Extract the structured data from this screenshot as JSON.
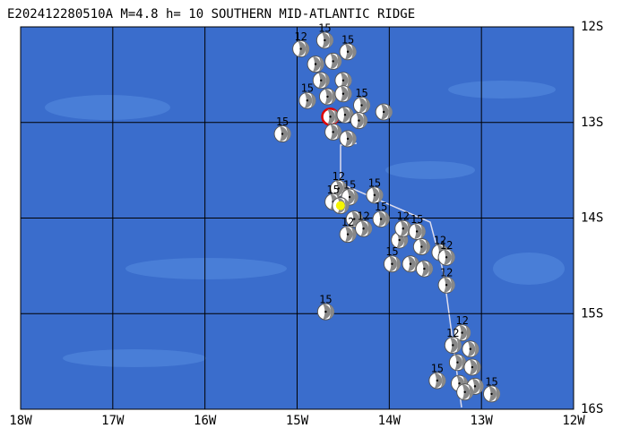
{
  "title": "E202412280510A M=4.8 h= 10 SOUTHERN MID-ATLANTIC RIDGE",
  "lon_ticks": [
    {
      "value": -18,
      "label": "18W"
    },
    {
      "value": -17,
      "label": "17W"
    },
    {
      "value": -16,
      "label": "16W"
    },
    {
      "value": -15,
      "label": "15W"
    },
    {
      "value": -14,
      "label": "14W"
    },
    {
      "value": -13,
      "label": "13W"
    },
    {
      "value": -12,
      "label": "12W"
    }
  ],
  "lat_ticks": [
    {
      "value": -12,
      "label": "12S"
    },
    {
      "value": -13,
      "label": "13S"
    },
    {
      "value": -14,
      "label": "14S"
    },
    {
      "value": -15,
      "label": "15S"
    },
    {
      "value": -16,
      "label": "16S"
    }
  ],
  "events": [
    {
      "lon": -14.96,
      "lat": -12.23,
      "label": "12"
    },
    {
      "lon": -14.7,
      "lat": -12.14,
      "label": "15"
    },
    {
      "lon": -14.45,
      "lat": -12.26,
      "label": "15"
    },
    {
      "lon": -14.8,
      "lat": -12.39,
      "label": null
    },
    {
      "lon": -14.61,
      "lat": -12.36,
      "label": null
    },
    {
      "lon": -14.5,
      "lat": -12.56,
      "label": null
    },
    {
      "lon": -14.74,
      "lat": -12.56,
      "label": null
    },
    {
      "lon": -14.89,
      "lat": -12.77,
      "label": "15"
    },
    {
      "lon": -14.67,
      "lat": -12.73,
      "label": null
    },
    {
      "lon": -14.5,
      "lat": -12.7,
      "label": null
    },
    {
      "lon": -14.3,
      "lat": -12.82,
      "label": "15"
    },
    {
      "lon": -14.06,
      "lat": -12.89,
      "label": null
    },
    {
      "lon": -14.64,
      "lat": -12.94,
      "label": null,
      "edge_color": "#e00000"
    },
    {
      "lon": -14.48,
      "lat": -12.92,
      "label": null
    },
    {
      "lon": -14.33,
      "lat": -12.98,
      "label": null
    },
    {
      "lon": -15.16,
      "lat": -13.12,
      "label": "15"
    },
    {
      "lon": -14.61,
      "lat": -13.1,
      "label": null
    },
    {
      "lon": -14.45,
      "lat": -13.17,
      "label": null
    },
    {
      "lon": -14.55,
      "lat": -13.69,
      "label": "12"
    },
    {
      "lon": -14.61,
      "lat": -13.83,
      "label": "15"
    },
    {
      "lon": -14.43,
      "lat": -13.78,
      "label": "15"
    },
    {
      "lon": -14.16,
      "lat": -13.76,
      "label": "15"
    },
    {
      "lon": -14.53,
      "lat": -13.87,
      "label": null,
      "fill_color": "#f5f500"
    },
    {
      "lon": -14.38,
      "lat": -14.01,
      "label": null
    },
    {
      "lon": -14.45,
      "lat": -14.17,
      "label": "12"
    },
    {
      "lon": -14.28,
      "lat": -14.11,
      "label": "12"
    },
    {
      "lon": -14.09,
      "lat": -14.01,
      "label": "15"
    },
    {
      "lon": -13.89,
      "lat": -14.23,
      "label": null
    },
    {
      "lon": -13.85,
      "lat": -14.11,
      "label": "12"
    },
    {
      "lon": -13.7,
      "lat": -14.14,
      "label": "15"
    },
    {
      "lon": -13.65,
      "lat": -14.3,
      "label": null
    },
    {
      "lon": -13.97,
      "lat": -14.48,
      "label": "15"
    },
    {
      "lon": -13.77,
      "lat": -14.48,
      "label": null
    },
    {
      "lon": -13.62,
      "lat": -14.53,
      "label": null
    },
    {
      "lon": -13.45,
      "lat": -14.36,
      "label": "12"
    },
    {
      "lon": -13.38,
      "lat": -14.41,
      "label": "12"
    },
    {
      "lon": -13.38,
      "lat": -14.7,
      "label": "12"
    },
    {
      "lon": -14.69,
      "lat": -14.98,
      "label": "15"
    },
    {
      "lon": -13.21,
      "lat": -15.2,
      "label": "12"
    },
    {
      "lon": -13.31,
      "lat": -15.33,
      "label": "12"
    },
    {
      "lon": -13.12,
      "lat": -15.37,
      "label": null
    },
    {
      "lon": -13.26,
      "lat": -15.51,
      "label": null
    },
    {
      "lon": -13.1,
      "lat": -15.56,
      "label": null
    },
    {
      "lon": -13.48,
      "lat": -15.7,
      "label": "15"
    },
    {
      "lon": -13.24,
      "lat": -15.73,
      "label": null
    },
    {
      "lon": -13.07,
      "lat": -15.76,
      "label": null
    },
    {
      "lon": -12.89,
      "lat": -15.84,
      "label": "15"
    },
    {
      "lon": -13.18,
      "lat": -15.82,
      "label": null
    }
  ]
}
